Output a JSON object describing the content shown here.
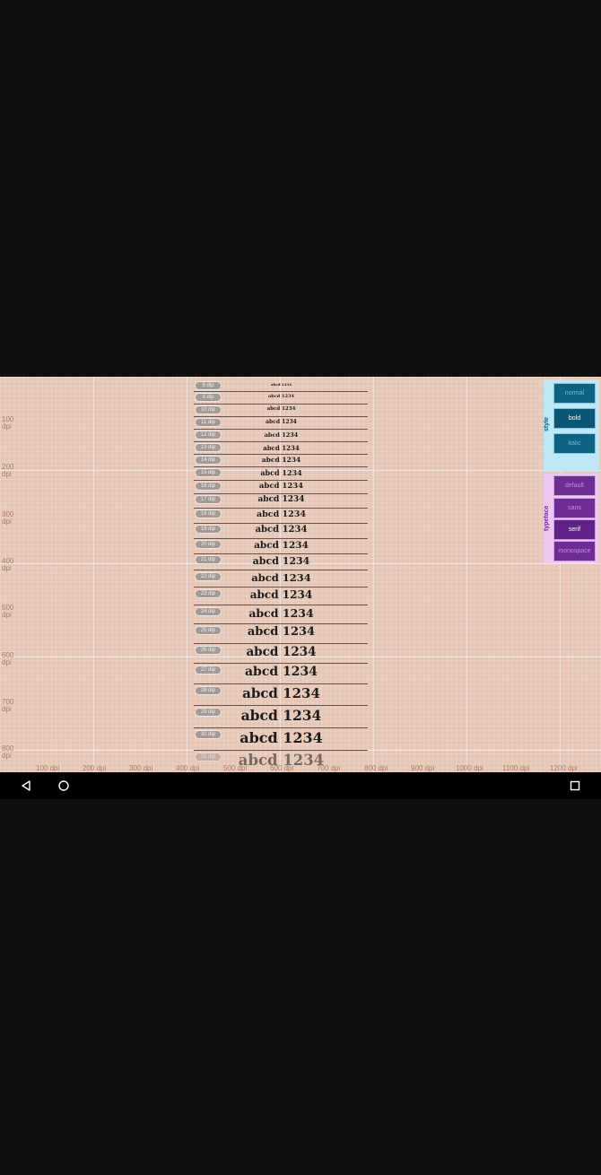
{
  "app": {
    "y_ruler": [
      {
        "value": "100",
        "unit": "dpi"
      },
      {
        "value": "200",
        "unit": "dpi"
      },
      {
        "value": "300",
        "unit": "dpi"
      },
      {
        "value": "400",
        "unit": "dpi"
      },
      {
        "value": "500",
        "unit": "dpi"
      },
      {
        "value": "600",
        "unit": "dpi"
      },
      {
        "value": "700",
        "unit": "dpi"
      },
      {
        "value": "800",
        "unit": "dpi"
      }
    ],
    "x_ruler": [
      "100 dpi",
      "200 dpi",
      "300 dpi",
      "400 dpi",
      "500 dpi",
      "600 dpi",
      "700 dpi",
      "800 dpi",
      "900 dpi",
      "1000 dpi",
      "1100 dpi",
      "1200 dpi"
    ],
    "sample_text": "abcd 1234",
    "rows": [
      {
        "dip": "8 dip"
      },
      {
        "dip": "9 dip"
      },
      {
        "dip": "10 dip"
      },
      {
        "dip": "11 dip"
      },
      {
        "dip": "12 dip"
      },
      {
        "dip": "13 dip"
      },
      {
        "dip": "14 dip"
      },
      {
        "dip": "15 dip"
      },
      {
        "dip": "16 dip"
      },
      {
        "dip": "17 dip"
      },
      {
        "dip": "18 dip"
      },
      {
        "dip": "19 dip"
      },
      {
        "dip": "20 dip"
      },
      {
        "dip": "21 dip"
      },
      {
        "dip": "22 dip"
      },
      {
        "dip": "23 dip"
      },
      {
        "dip": "24 dip"
      },
      {
        "dip": "25 dip"
      },
      {
        "dip": "26 dip"
      },
      {
        "dip": "27 dip"
      },
      {
        "dip": "28 dip"
      },
      {
        "dip": "29 dip"
      },
      {
        "dip": "30 dip"
      },
      {
        "dip": "31 dip"
      }
    ],
    "style_group": {
      "label": "style",
      "options": [
        "normal",
        "bold",
        "italic"
      ],
      "selected": "bold"
    },
    "typeface_group": {
      "label": "typeface",
      "options": [
        "default",
        "sans",
        "serif",
        "monospace"
      ],
      "selected": "serif"
    },
    "colors": {
      "background": "#e6c6b4",
      "ruler_text": "#b07a62",
      "style_panel": "#bfe8f6",
      "style_button": "#0d6282",
      "typeface_panel": "#ecc8f2",
      "typeface_button": "#6d2d95"
    }
  },
  "nav_bar": {
    "back_icon": "back-triangle-icon",
    "home_icon": "home-circle-icon",
    "recents_icon": "recents-square-icon"
  }
}
